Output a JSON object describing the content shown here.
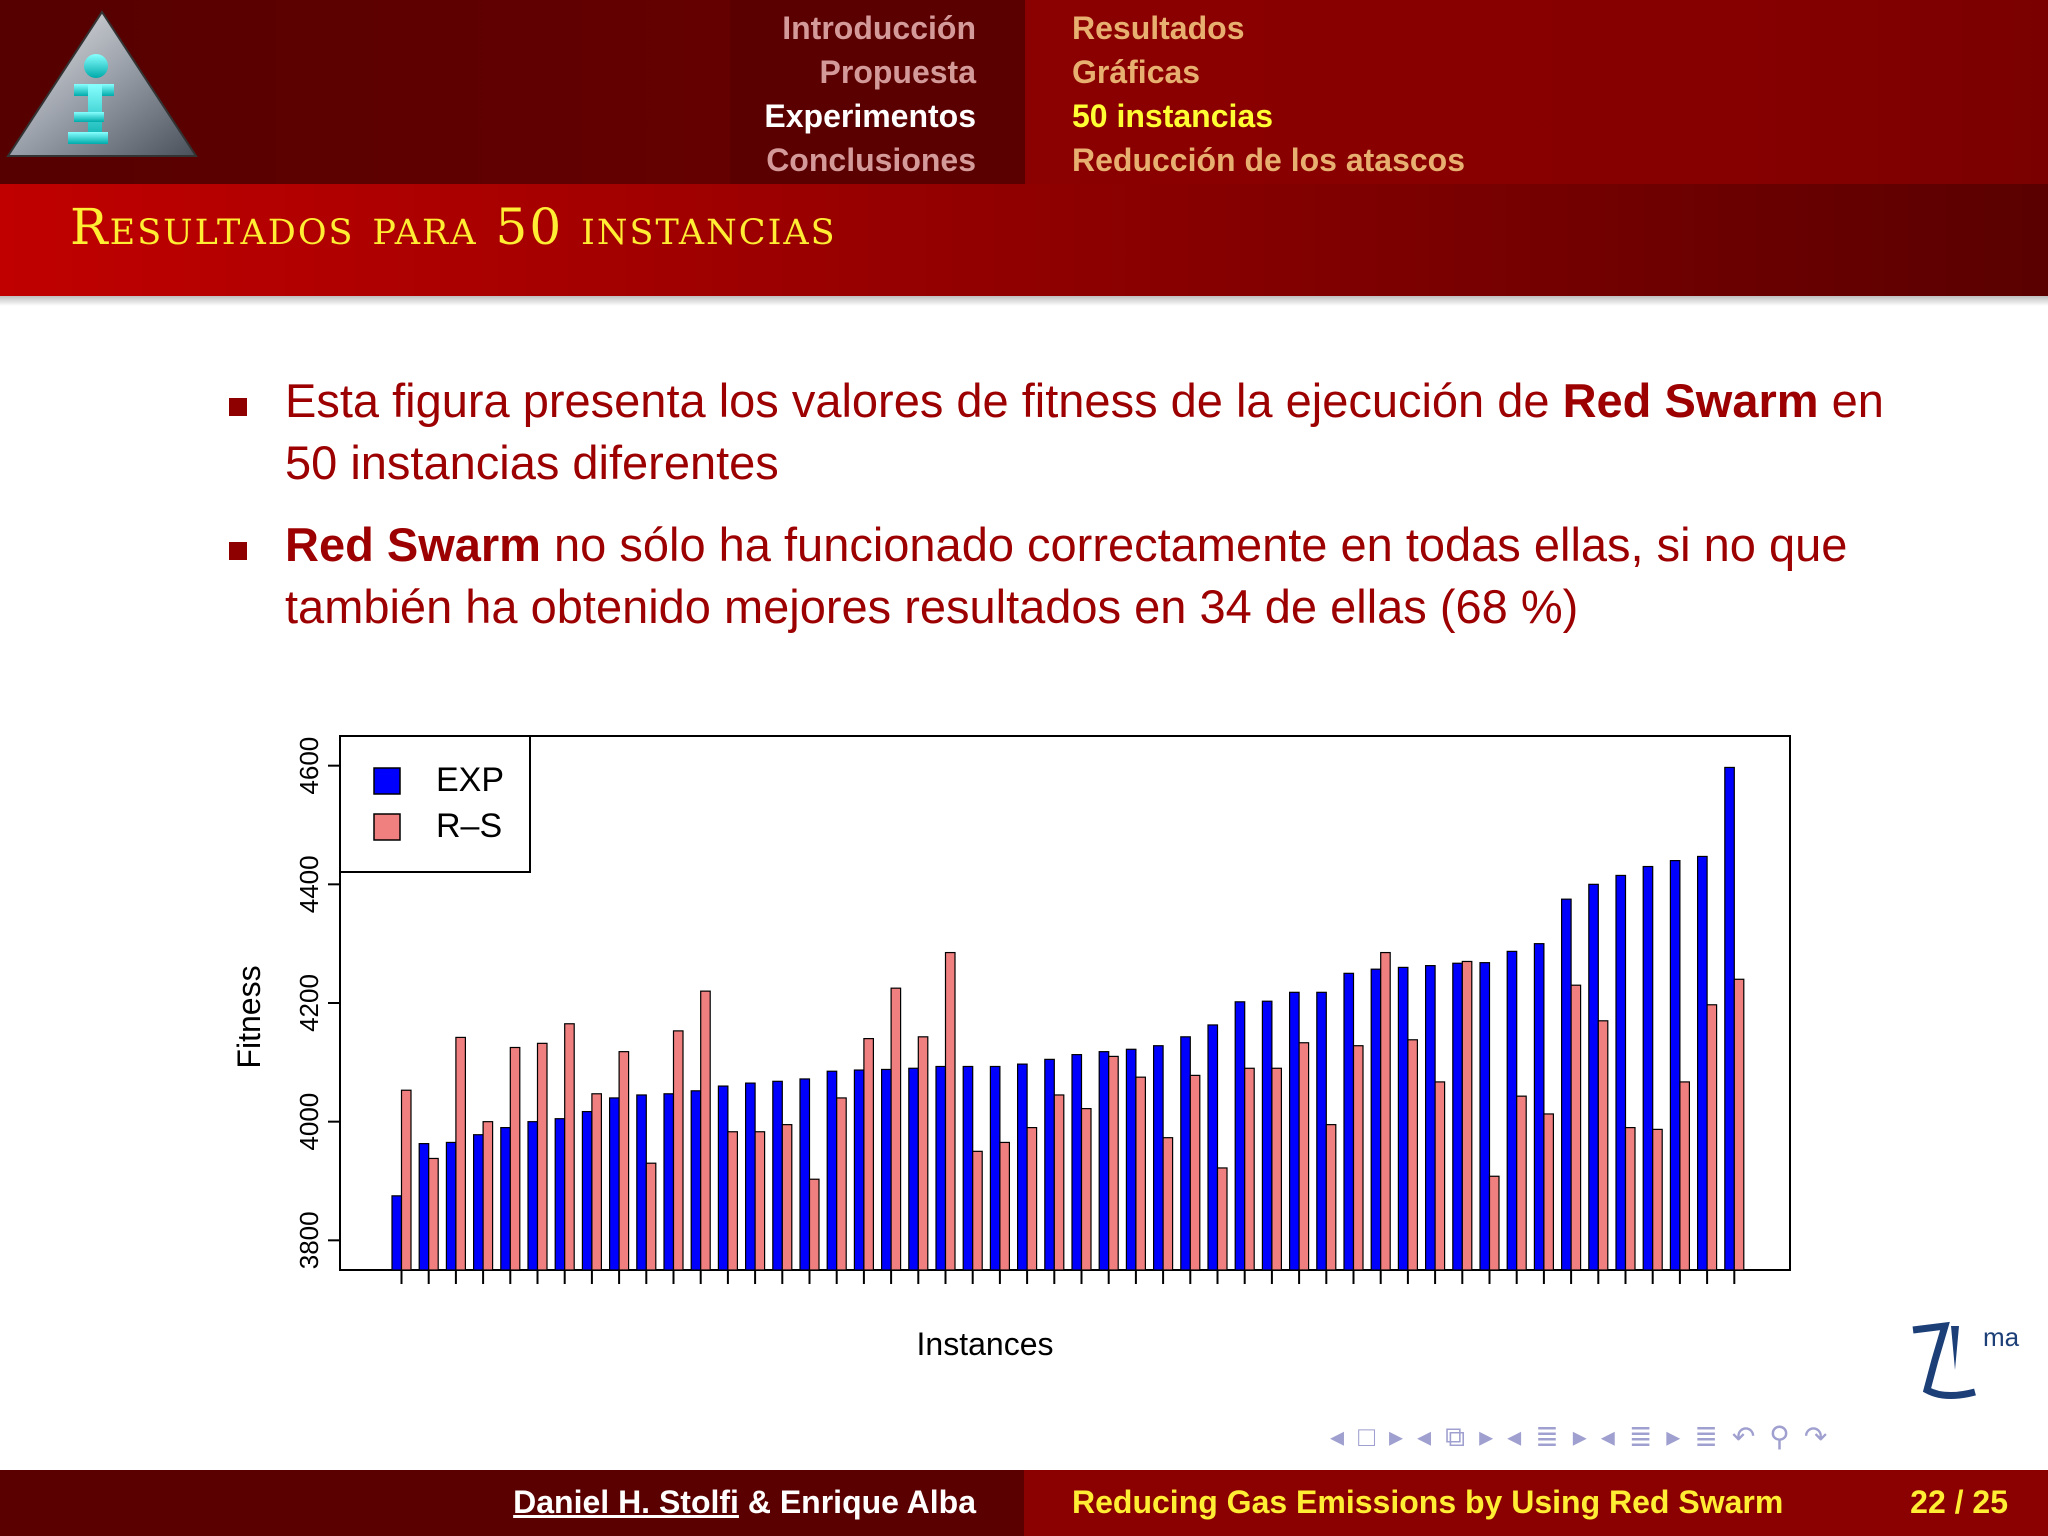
{
  "nav": {
    "sections": [
      "Introducción",
      "Propuesta",
      "Experimentos",
      "Conclusiones"
    ],
    "active_section": 2,
    "subsections": [
      "Resultados",
      "Gráficas",
      "50 instancias",
      "Reducción de los atascos"
    ],
    "active_subsection": 2
  },
  "frame_title": "Resultados para 50 instancias",
  "bullets": [
    {
      "pre": "Esta figura presenta los valores de fitness de la ejecución de ",
      "bold": "Red Swarm",
      "post": " en 50 instancias diferentes"
    },
    {
      "pre": "",
      "bold": "Red Swarm",
      "post": " no sólo ha funcionado correctamente en todas ellas, si no que también ha obtenido mejores resultados en 34 de ellas (68 %)"
    }
  ],
  "chart_data": {
    "type": "bar",
    "title": "",
    "xlabel": "Instances",
    "ylabel": "Fitness",
    "ylim": [
      3750,
      4650
    ],
    "yticks": [
      3800,
      4000,
      4200,
      4400,
      4600
    ],
    "legend_position": "top-left",
    "grid": false,
    "series": [
      {
        "name": "EXP",
        "color": "#0000ff",
        "values": [
          3875,
          3963,
          3965,
          3978,
          3990,
          4000,
          4005,
          4017,
          4040,
          4045,
          4047,
          4052,
          4060,
          4065,
          4068,
          4072,
          4085,
          4087,
          4088,
          4090,
          4093,
          4093,
          4093,
          4097,
          4105,
          4113,
          4118,
          4122,
          4128,
          4143,
          4163,
          4202,
          4203,
          4218,
          4218,
          4250,
          4257,
          4260,
          4263,
          4267,
          4268,
          4287,
          4300,
          4375,
          4400,
          4415,
          4430,
          4440,
          4447,
          4597
        ]
      },
      {
        "name": "R–S",
        "color": "#f08080",
        "values": [
          4053,
          3938,
          4142,
          4000,
          4125,
          4132,
          4165,
          4047,
          4118,
          3930,
          4153,
          4220,
          3983,
          3983,
          3995,
          3903,
          4040,
          4140,
          4225,
          4143,
          4285,
          3950,
          3965,
          3990,
          4045,
          4022,
          4110,
          4075,
          3973,
          4078,
          3922,
          4090,
          4090,
          4133,
          3995,
          4128,
          4285,
          4138,
          4067,
          4270,
          3908,
          4043,
          4013,
          4230,
          4170,
          3990,
          3987,
          4067,
          4197,
          4240
        ]
      }
    ]
  },
  "footer": {
    "authors_underlined": "Daniel H. Stolfi",
    "authors_rest": " & Enrique Alba",
    "title": "Reducing Gas Emissions by Using Red Swarm",
    "page": "22 / 25"
  },
  "colors": {
    "header_dark": "#5a0000",
    "header_red": "#8b0000",
    "title_yellow": "#ffee33",
    "text_red": "#9c0000"
  },
  "nav_symbols": [
    "◂",
    "□",
    "▸",
    "◂",
    "⧉",
    "▸",
    "◂",
    "≣",
    "▸",
    "◂",
    "≣",
    "▸",
    "≣",
    "↶",
    "⚲",
    "↷"
  ]
}
